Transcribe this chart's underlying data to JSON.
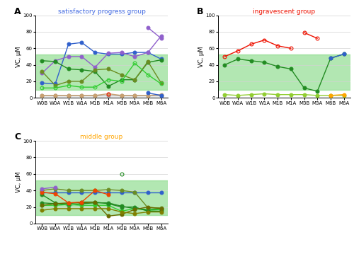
{
  "x_labels": [
    "W0B",
    "W0A",
    "W1B",
    "W1A",
    "M1B",
    "M1A",
    "M3B",
    "M3A",
    "M6B",
    "M6A"
  ],
  "green_band_lower": 10.1,
  "green_band_upper": 52.1,
  "green_band_color": "#7FD87F",
  "green_band_alpha": 0.6,
  "title_A": "satisfactory progress group",
  "title_B": "ingravescent group",
  "title_C": "middle group",
  "title_A_color": "#4169E1",
  "title_B_color": "#EE1100",
  "title_C_color": "#FFA500",
  "ylabel": "VC, μM",
  "ylim": [
    0,
    100
  ],
  "yticks": [
    0,
    20,
    40,
    60,
    80,
    100
  ],
  "panel_A_lines": [
    {
      "y": [
        18,
        17,
        65,
        67,
        55,
        53,
        53,
        55,
        55,
        47
      ],
      "color": "#3060CC",
      "solid": true
    },
    {
      "y": [
        30,
        45,
        50,
        50,
        37,
        54,
        55,
        50,
        55,
        75
      ],
      "color": "#9060CC",
      "solid": true
    },
    {
      "y": [
        45,
        44,
        35,
        34,
        32,
        14,
        22,
        22,
        43,
        46
      ],
      "color": "#228B22",
      "solid": true
    },
    {
      "y": [
        32,
        15,
        20,
        20,
        34,
        35,
        28,
        22,
        44,
        18
      ],
      "color": "#6B8E23",
      "solid": true
    },
    {
      "y": [
        12,
        12,
        15,
        13,
        13,
        22,
        20,
        42,
        28,
        17
      ],
      "color": "#32CD32",
      "solid": false
    },
    {
      "y": [
        3,
        3,
        3,
        3,
        3,
        3,
        3,
        3,
        3,
        3
      ],
      "color": "#AAAAAA",
      "solid": true
    },
    {
      "y": [
        3,
        3,
        3,
        3,
        3,
        5,
        3,
        3,
        3,
        4
      ],
      "color": "#C8A070",
      "solid": true
    },
    {
      "y": [
        null,
        null,
        null,
        null,
        null,
        5,
        null,
        null,
        null,
        null
      ],
      "color": "#EE1100",
      "solid": false
    },
    {
      "y": [
        null,
        null,
        null,
        null,
        null,
        null,
        null,
        null,
        85,
        72
      ],
      "color": "#9060CC",
      "solid": true
    },
    {
      "y": [
        null,
        null,
        null,
        null,
        null,
        null,
        null,
        null,
        6,
        3
      ],
      "color": "#3060CC",
      "solid": true
    }
  ],
  "panel_B_lines": [
    {
      "y": [
        50,
        57,
        65,
        70,
        63,
        60,
        null,
        null,
        null,
        null
      ],
      "color": "#EE1100",
      "solid": false
    },
    {
      "y": [
        null,
        null,
        null,
        null,
        null,
        null,
        79,
        72,
        null,
        null
      ],
      "color": "#EE1100",
      "solid": false
    },
    {
      "y": [
        40,
        47,
        45,
        43,
        38,
        35,
        12,
        8,
        48,
        53
      ],
      "color": "#228B22",
      "solid": true
    },
    {
      "y": [
        4,
        3,
        4,
        5,
        4,
        4,
        4,
        3,
        3,
        3
      ],
      "color": "#90CD30",
      "solid": true
    },
    {
      "y": [
        null,
        null,
        null,
        null,
        null,
        null,
        null,
        null,
        3,
        4
      ],
      "color": "#FFA500",
      "solid": true
    },
    {
      "y": [
        null,
        null,
        null,
        null,
        null,
        null,
        null,
        null,
        48,
        53
      ],
      "color": "#3060CC",
      "solid": true
    }
  ],
  "panel_C_lines": [
    {
      "y": [
        38,
        38,
        38,
        38,
        38,
        38,
        38,
        38,
        38,
        38
      ],
      "color": "#3060CC",
      "solid": true
    },
    {
      "y": [
        35,
        25,
        22,
        24,
        25,
        25,
        21,
        18,
        17,
        18
      ],
      "color": "#228B22",
      "solid": true
    },
    {
      "y": [
        40,
        42,
        40,
        40,
        40,
        41,
        40,
        38,
        19,
        19
      ],
      "color": "#6B8E23",
      "solid": true
    },
    {
      "y": [
        22,
        22,
        23,
        22,
        22,
        22,
        15,
        18,
        16,
        17
      ],
      "color": "#32CD32",
      "solid": true
    },
    {
      "y": [
        25,
        24,
        24,
        26,
        26,
        24,
        20,
        20,
        15,
        15
      ],
      "color": "#228B22",
      "solid": true
    },
    {
      "y": [
        22,
        24,
        25,
        25,
        26,
        9,
        11,
        17,
        20,
        18
      ],
      "color": "#6B6B00",
      "solid": true
    },
    {
      "y": [
        16,
        18,
        18,
        18,
        18,
        18,
        14,
        12,
        14,
        14
      ],
      "color": "#808000",
      "solid": true
    },
    {
      "y": [
        38,
        36,
        25,
        26,
        40,
        35,
        null,
        null,
        null,
        null
      ],
      "color": "#EE4400",
      "solid": true
    },
    {
      "y": [
        42,
        44,
        null,
        null,
        null,
        null,
        null,
        null,
        null,
        null
      ],
      "color": "#9060CC",
      "solid": true
    },
    {
      "y": [
        null,
        null,
        null,
        null,
        null,
        null,
        60,
        null,
        null,
        null
      ],
      "color": "#228B22",
      "solid": false
    }
  ]
}
